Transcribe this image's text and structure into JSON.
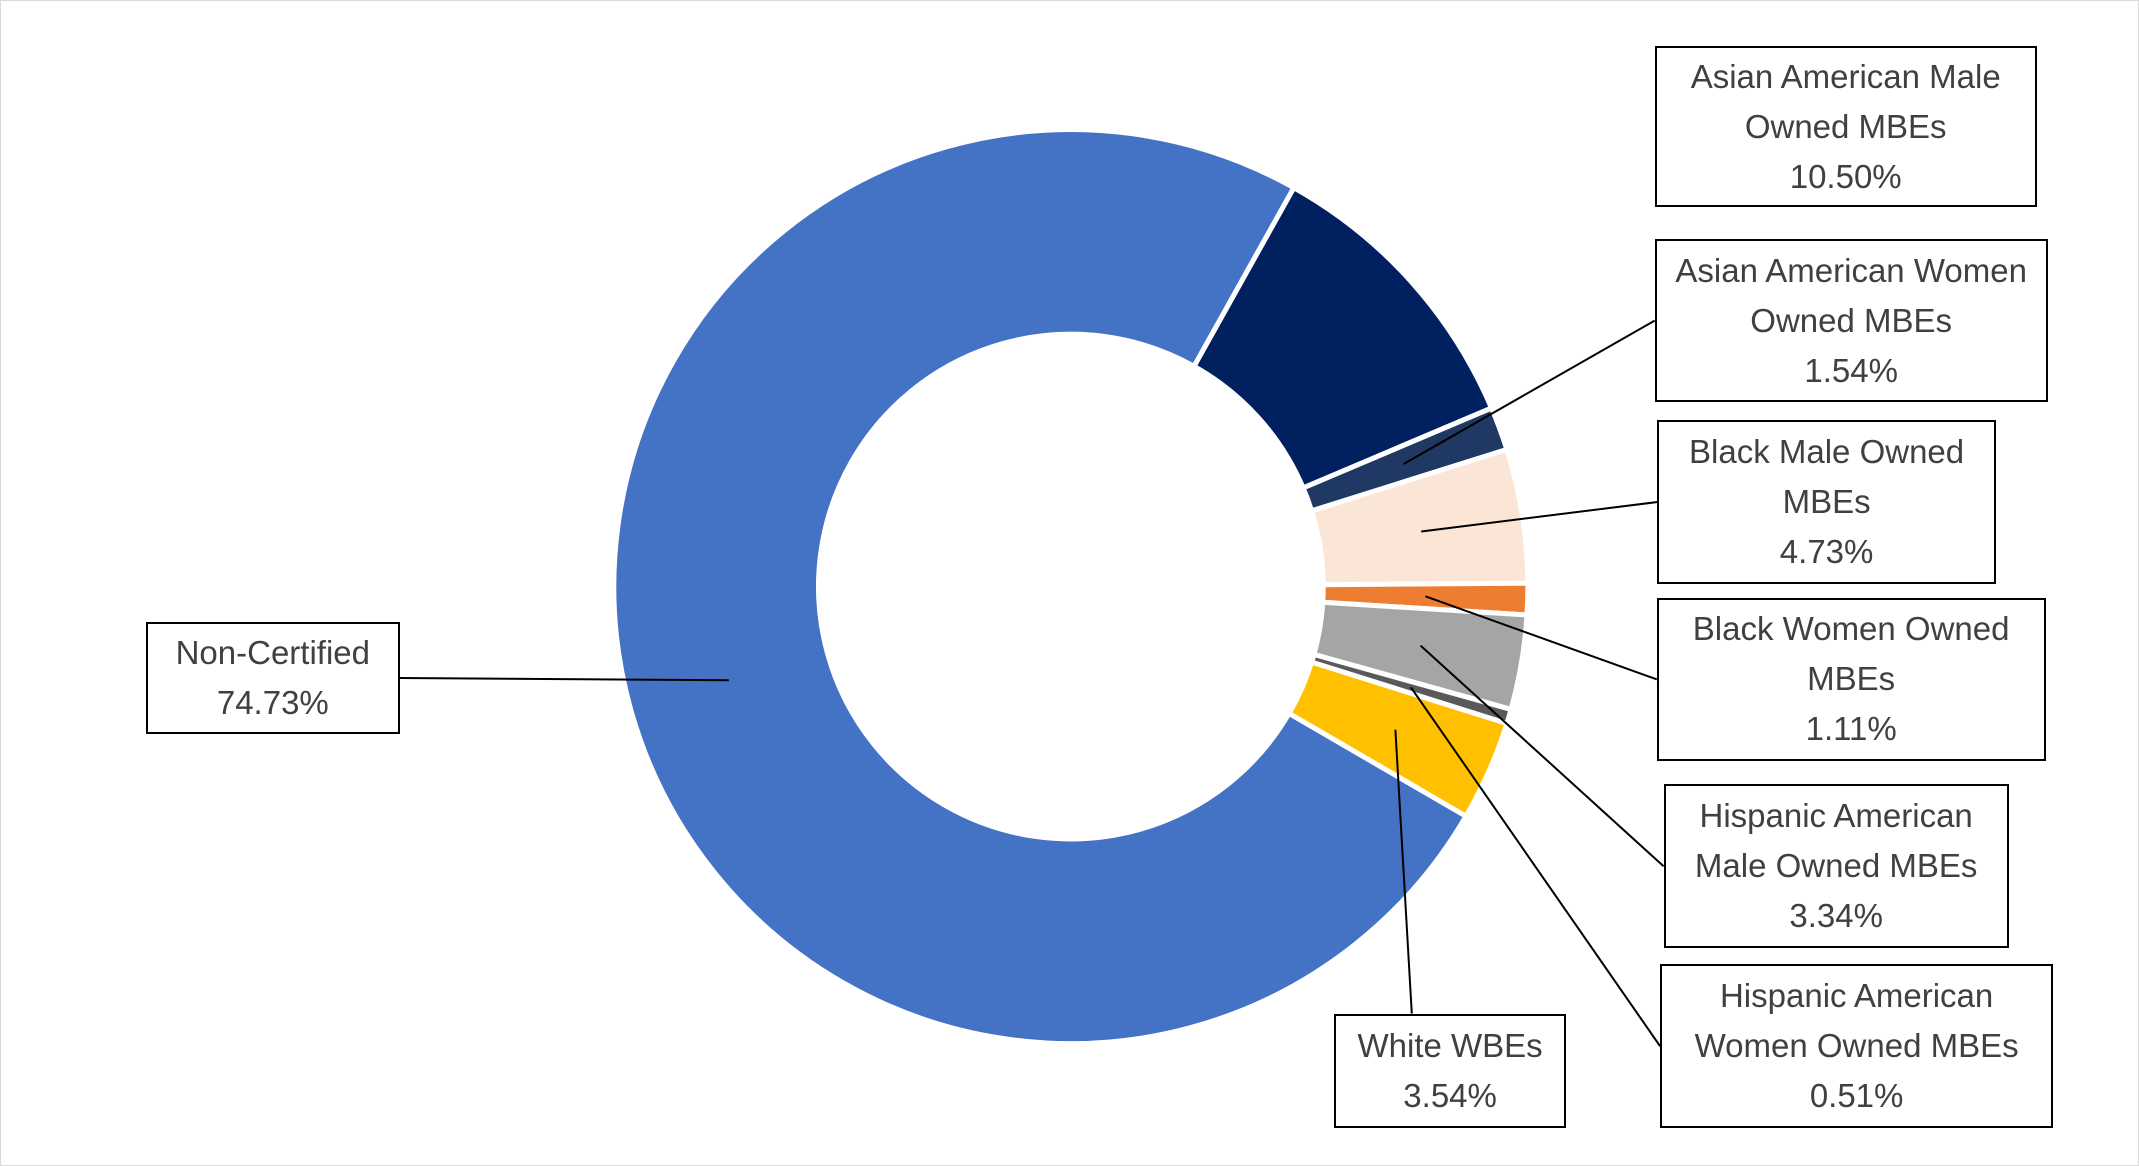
{
  "chart_data": {
    "type": "donut",
    "categories": [
      "Asian American Male Owned MBEs",
      "Asian American Women Owned MBEs",
      "Black Male Owned MBEs",
      "Black Women Owned MBEs",
      "Hispanic American Male Owned MBEs",
      "Hispanic American Women Owned MBEs",
      "White WBEs",
      "Non-Certified"
    ],
    "values": [
      10.5,
      1.54,
      4.73,
      1.11,
      3.34,
      0.51,
      3.54,
      74.73
    ],
    "value_labels": [
      "10.50%",
      "1.54%",
      "4.73%",
      "1.11%",
      "3.34%",
      "0.51%",
      "3.54%",
      "74.73%"
    ],
    "colors": [
      "#002060",
      "#1f3864",
      "#fbe5d6",
      "#ed7d31",
      "#a5a5a5",
      "#595959",
      "#ffc000",
      "#4472c4"
    ]
  }
}
